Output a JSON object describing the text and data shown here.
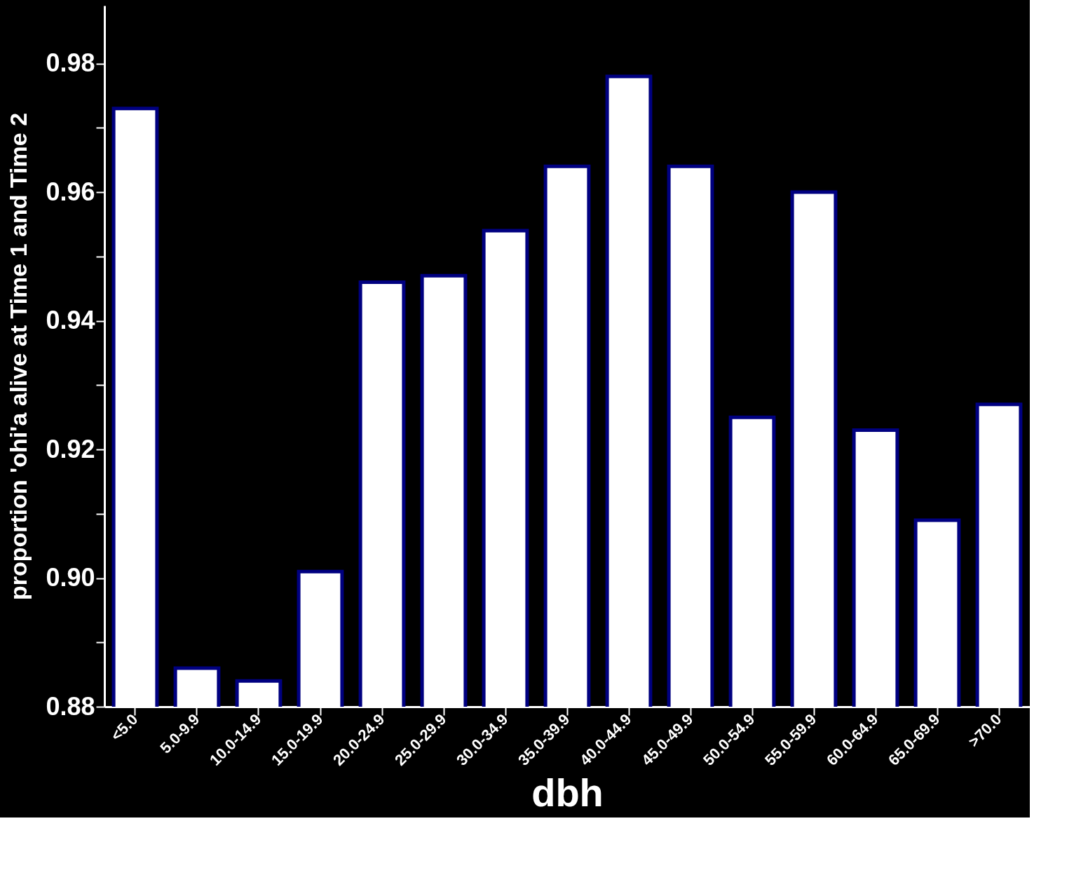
{
  "chart_data": {
    "type": "bar",
    "xlabel": "dbh",
    "ylabel": "proportion 'ohi'a alive at Time 1 and Time 2",
    "categories": [
      "<5.0",
      "5.0-9.9",
      "10.0-14.9",
      "15.0-19.9",
      "20.0-24.9",
      "25.0-29.9",
      "30.0-34.9",
      "35.0-39.9",
      "40.0-44.9",
      "45.0-49.9",
      "50.0-54.9",
      "55.0-59.9",
      "60.0-64.9",
      "65.0-69.9",
      ">70.0"
    ],
    "values": [
      0.973,
      0.886,
      0.884,
      0.901,
      0.946,
      0.947,
      0.954,
      0.964,
      0.978,
      0.964,
      0.925,
      0.96,
      0.923,
      0.909,
      0.927
    ],
    "color": "#ffffff",
    "ylim": [
      0.88,
      0.989
    ],
    "yticks": [
      0.88,
      {
        "value": 0.89,
        "label": null
      },
      "0.90",
      {
        "value": 0.91,
        "label": null
      },
      0.92,
      {
        "value": 0.93,
        "label": null
      },
      0.94,
      {
        "value": 0.95,
        "label": null
      },
      0.96,
      {
        "value": 0.97,
        "label": null
      },
      0.98
    ],
    "grid": false
  }
}
